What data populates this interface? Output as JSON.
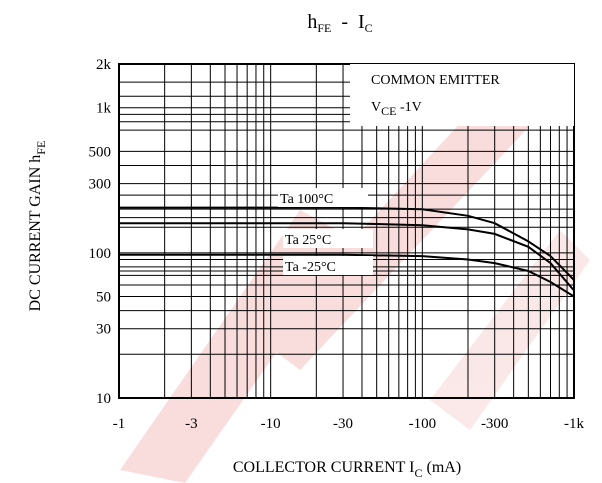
{
  "chart_data": {
    "type": "line",
    "title": {
      "main_1": "h",
      "sub_1": "FE",
      "dash": "-",
      "main_2": "I",
      "sub_2": "C"
    },
    "xlabel": {
      "main": "COLLECTOR CURRENT I",
      "sub": "C",
      "suffix": " (mA)"
    },
    "ylabel": {
      "main": "DC CURRENT GAIN h",
      "sub": "FE"
    },
    "x_scale": "log",
    "y_scale": "log",
    "xlim": [
      -1,
      -1000
    ],
    "ylim": [
      10,
      2000
    ],
    "x_ticks": [
      {
        "value": 1,
        "label": "-1"
      },
      {
        "value": 3,
        "label": "-3"
      },
      {
        "value": 10,
        "label": "-10"
      },
      {
        "value": 30,
        "label": "-30"
      },
      {
        "value": 100,
        "label": "-100"
      },
      {
        "value": 300,
        "label": "-300"
      },
      {
        "value": 1000,
        "label": "-1k"
      }
    ],
    "y_ticks": [
      {
        "value": 2000,
        "label": "2k"
      },
      {
        "value": 1000,
        "label": "1k"
      },
      {
        "value": 500,
        "label": "500"
      },
      {
        "value": 300,
        "label": "300"
      },
      {
        "value": 100,
        "label": "100"
      },
      {
        "value": 50,
        "label": "50"
      },
      {
        "value": 30,
        "label": "30"
      },
      {
        "value": 10,
        "label": "10"
      }
    ],
    "y_extra_gridlines": [
      40,
      75,
      150,
      175,
      200,
      250,
      400,
      700,
      800,
      900,
      1200,
      1500
    ],
    "grid": true,
    "annotation": {
      "line1": "COMMON EMITTER",
      "line2_main": "V",
      "line2_sub": "CE",
      "line2_value": "  -1V"
    },
    "series": [
      {
        "name": "Ta  100°C",
        "x": [
          1,
          10,
          30,
          100,
          200,
          300,
          500,
          700,
          1000
        ],
        "y": [
          205,
          205,
          205,
          200,
          180,
          160,
          120,
          95,
          65
        ]
      },
      {
        "name": "Ta  25°C",
        "x": [
          1,
          10,
          30,
          100,
          200,
          300,
          500,
          700,
          1000
        ],
        "y": [
          160,
          160,
          160,
          155,
          145,
          135,
          110,
          85,
          55
        ]
      },
      {
        "name": "Ta  -25°C",
        "x": [
          1,
          10,
          30,
          100,
          200,
          300,
          500,
          700,
          1000
        ],
        "y": [
          97,
          97,
          97,
          95,
          90,
          85,
          75,
          63,
          50
        ]
      }
    ],
    "colors": {
      "line": "#000000",
      "grid": "#000000",
      "watermark": "#f2b3b3"
    }
  }
}
